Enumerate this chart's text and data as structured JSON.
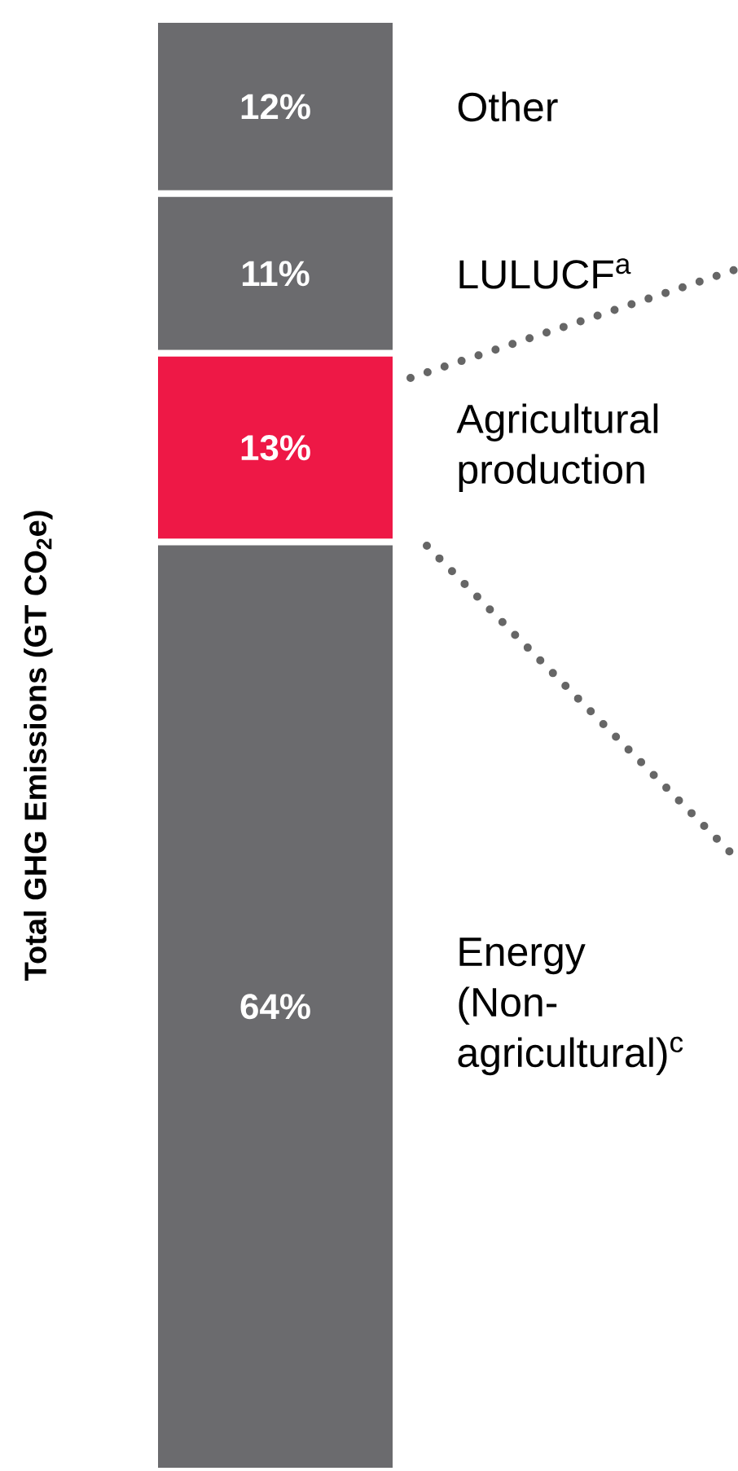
{
  "chart_data": {
    "type": "bar",
    "stacked": true,
    "ylabel": "Total GHG Emissions (GT CO$_{2}$e)",
    "categories": [
      null
    ],
    "series": [
      {
        "name": "Energy (Non-agricultural)$^{c}$",
        "color": "#6b6b6e",
        "values": [
          64
        ],
        "value_labels": [
          "64%"
        ]
      },
      {
        "name": "Agricultural production",
        "color": "#ee1846",
        "values": [
          13
        ],
        "value_labels": [
          "13%"
        ]
      },
      {
        "name": "LULUCF$^{a}$",
        "color": "#6b6b6e",
        "values": [
          11
        ],
        "value_labels": [
          "11%"
        ]
      },
      {
        "name": "Other",
        "color": "#6b6b6e",
        "values": [
          12
        ],
        "value_labels": [
          "12%"
        ]
      }
    ]
  }
}
